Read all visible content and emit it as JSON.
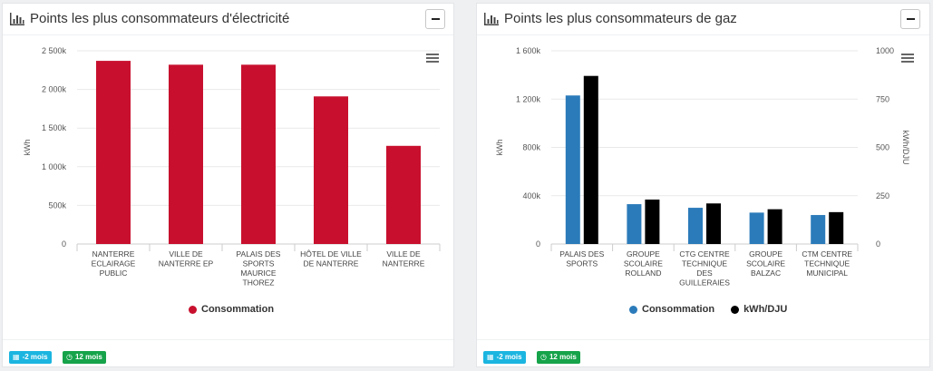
{
  "colors": {
    "electricity_bar": "#c8102e",
    "gas_consumption": "#2b7bba",
    "gas_ratio": "#000000",
    "badge_2m": "#1bb5e0",
    "badge_12m": "#16a34a"
  },
  "panels": {
    "electricity": {
      "title": "Points les plus consommateurs d'électricité",
      "legend": [
        "Consommation"
      ],
      "badges": {
        "period_2m": "-2 mois",
        "period_12m": "12 mois"
      }
    },
    "gas": {
      "title": "Points les plus consommateurs de gaz",
      "legend": [
        "Consommation",
        "kWh/DJU"
      ],
      "badges": {
        "period_2m": "-2 mois",
        "period_12m": "12 mois"
      }
    }
  },
  "chart_data": [
    {
      "type": "bar",
      "title": "",
      "ylabel": "kWh",
      "ylim": [
        0,
        2500000
      ],
      "ytick_labels": [
        "0",
        "500k",
        "1 000k",
        "1 500k",
        "2 000k",
        "2 500k"
      ],
      "categories": [
        [
          "NANTERRE",
          "ECLAIRAGE",
          "PUBLIC"
        ],
        [
          "VILLE DE",
          "NANTERRE EP"
        ],
        [
          "PALAIS DES",
          "SPORTS",
          "MAURICE",
          "THOREZ"
        ],
        [
          "HÔTEL DE VILLE",
          "DE NANTERRE"
        ],
        [
          "VILLE DE",
          "NANTERRE"
        ]
      ],
      "series": [
        {
          "name": "Consommation",
          "values": [
            2370000,
            2320000,
            2320000,
            1910000,
            1270000
          ]
        }
      ],
      "legend_position": "bottom",
      "grid": true
    },
    {
      "type": "bar",
      "title": "",
      "ylabel": "kWh",
      "ylabel_right": "kWh/DJU",
      "ylim": [
        0,
        1600000
      ],
      "ylim_right": [
        0,
        1000
      ],
      "ytick_labels": [
        "0",
        "400k",
        "800k",
        "1 200k",
        "1 600k"
      ],
      "ytick_labels_right": [
        "0",
        "250",
        "500",
        "750",
        "1000"
      ],
      "categories": [
        [
          "PALAIS DES",
          "SPORTS"
        ],
        [
          "GROUPE",
          "SCOLAIRE",
          "ROLLAND"
        ],
        [
          "CTG CENTRE",
          "TECHNIQUE",
          "DES",
          "GUILLERAIES"
        ],
        [
          "GROUPE",
          "SCOLAIRE",
          "BALZAC"
        ],
        [
          "CTM CENTRE",
          "TECHNIQUE",
          "MUNICIPAL"
        ]
      ],
      "series": [
        {
          "name": "Consommation",
          "axis": "left",
          "values": [
            1230000,
            330000,
            300000,
            260000,
            240000
          ]
        },
        {
          "name": "kWh/DJU",
          "axis": "right",
          "values": [
            870,
            230,
            210,
            180,
            165
          ]
        }
      ],
      "legend_position": "bottom",
      "grid": true
    }
  ]
}
